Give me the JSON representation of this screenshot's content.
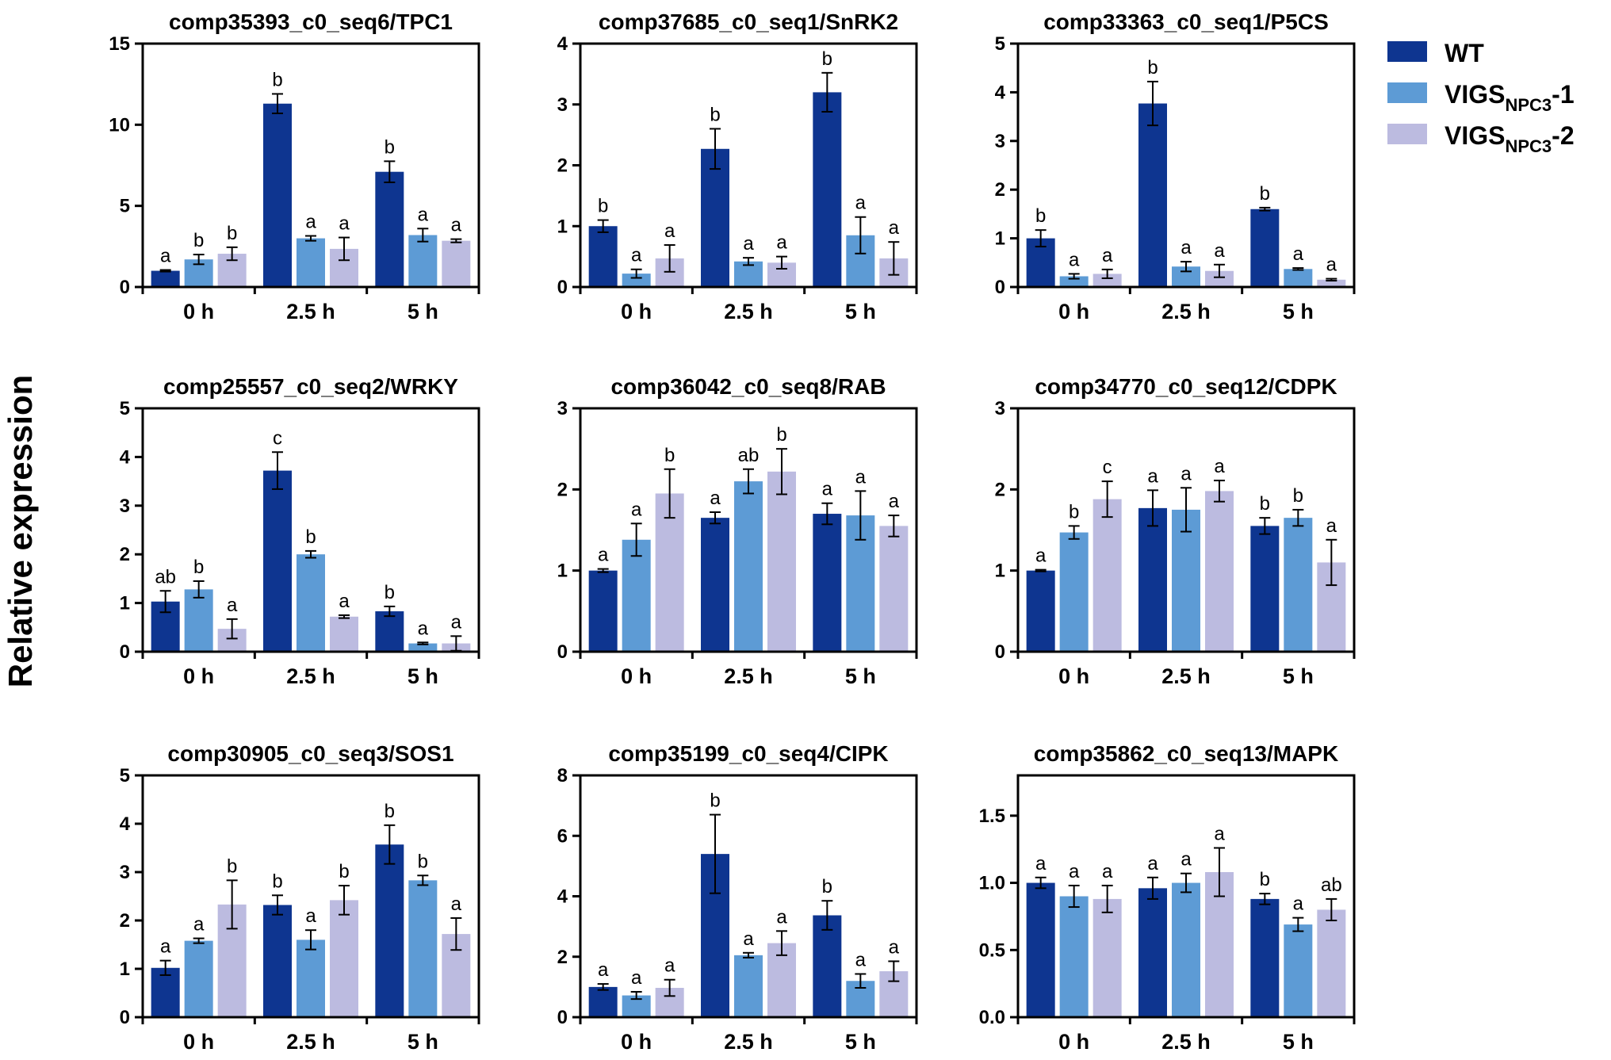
{
  "figure": {
    "ylabel": "Relative expression"
  },
  "legend": [
    {
      "name": "WT",
      "sub": "",
      "suffix": "",
      "color": "#0e3590"
    },
    {
      "name": "VIGS",
      "sub": "NPC3",
      "suffix": "-1",
      "color": "#5d9bd5"
    },
    {
      "name": "VIGS",
      "sub": "NPC3",
      "suffix": "-2",
      "color": "#bcbbe0"
    }
  ],
  "chart_data": [
    {
      "type": "bar",
      "title": "comp35393_c0_seq6/TPC1",
      "categories": [
        "0 h",
        "2.5 h",
        "5 h"
      ],
      "ylim": [
        0,
        15
      ],
      "yticks": [
        0,
        5,
        10,
        15
      ],
      "tick_labels": [
        "0",
        "5",
        "10",
        "15"
      ],
      "series": [
        {
          "name": "WT",
          "values": [
            1.0,
            11.3,
            7.1
          ],
          "errors": [
            0.05,
            0.6,
            0.65
          ],
          "letters": [
            "a",
            "b",
            "b"
          ]
        },
        {
          "name": "VIGS NPC3-1",
          "values": [
            1.7,
            3.0,
            3.2
          ],
          "errors": [
            0.3,
            0.15,
            0.4
          ],
          "letters": [
            "b",
            "a",
            "a"
          ]
        },
        {
          "name": "VIGS NPC3-2",
          "values": [
            2.05,
            2.35,
            2.85
          ],
          "errors": [
            0.4,
            0.7,
            0.1
          ],
          "letters": [
            "b",
            "a",
            "a"
          ]
        }
      ]
    },
    {
      "type": "bar",
      "title": "comp37685_c0_seq1/SnRK2",
      "categories": [
        "0 h",
        "2.5 h",
        "5 h"
      ],
      "ylim": [
        0,
        4
      ],
      "yticks": [
        0,
        1,
        2,
        3,
        4
      ],
      "tick_labels": [
        "0",
        "1",
        "2",
        "3",
        "4"
      ],
      "series": [
        {
          "name": "WT",
          "values": [
            1.0,
            2.27,
            3.2
          ],
          "errors": [
            0.1,
            0.33,
            0.32
          ],
          "letters": [
            "b",
            "b",
            "b"
          ]
        },
        {
          "name": "VIGS NPC3-1",
          "values": [
            0.22,
            0.42,
            0.85
          ],
          "errors": [
            0.07,
            0.06,
            0.3
          ],
          "letters": [
            "a",
            "a",
            "a"
          ]
        },
        {
          "name": "VIGS NPC3-2",
          "values": [
            0.47,
            0.4,
            0.47
          ],
          "errors": [
            0.22,
            0.1,
            0.27
          ],
          "letters": [
            "a",
            "a",
            "a"
          ]
        }
      ]
    },
    {
      "type": "bar",
      "title": "comp33363_c0_seq1/P5CS",
      "categories": [
        "0 h",
        "2.5 h",
        "5 h"
      ],
      "ylim": [
        0,
        5
      ],
      "yticks": [
        0,
        1,
        2,
        3,
        4,
        5
      ],
      "tick_labels": [
        "0",
        "1",
        "2",
        "3",
        "4",
        "5"
      ],
      "series": [
        {
          "name": "WT",
          "values": [
            1.0,
            3.77,
            1.6
          ],
          "errors": [
            0.17,
            0.45,
            0.03
          ],
          "letters": [
            "b",
            "b",
            "b"
          ]
        },
        {
          "name": "VIGS NPC3-1",
          "values": [
            0.22,
            0.42,
            0.37
          ],
          "errors": [
            0.05,
            0.1,
            0.02
          ],
          "letters": [
            "a",
            "a",
            "a"
          ]
        },
        {
          "name": "VIGS NPC3-2",
          "values": [
            0.27,
            0.33,
            0.15
          ],
          "errors": [
            0.09,
            0.13,
            0.02
          ],
          "letters": [
            "a",
            "a",
            "a"
          ]
        }
      ]
    },
    {
      "type": "bar",
      "title": "comp25557_c0_seq2/WRKY",
      "categories": [
        "0 h",
        "2.5 h",
        "5 h"
      ],
      "ylim": [
        0,
        5
      ],
      "yticks": [
        0,
        1,
        2,
        3,
        4,
        5
      ],
      "tick_labels": [
        "0",
        "1",
        "2",
        "3",
        "4",
        "5"
      ],
      "series": [
        {
          "name": "WT",
          "values": [
            1.03,
            3.72,
            0.83
          ],
          "errors": [
            0.22,
            0.38,
            0.1
          ],
          "letters": [
            "ab",
            "c",
            "b"
          ]
        },
        {
          "name": "VIGS NPC3-1",
          "values": [
            1.28,
            2.0,
            0.17
          ],
          "errors": [
            0.17,
            0.07,
            0.02
          ],
          "letters": [
            "b",
            "b",
            "a"
          ]
        },
        {
          "name": "VIGS NPC3-2",
          "values": [
            0.47,
            0.72,
            0.17
          ],
          "errors": [
            0.2,
            0.03,
            0.15
          ],
          "letters": [
            "a",
            "a",
            "a"
          ]
        }
      ]
    },
    {
      "type": "bar",
      "title": "comp36042_c0_seq8/RAB",
      "categories": [
        "0 h",
        "2.5 h",
        "5 h"
      ],
      "ylim": [
        0,
        3
      ],
      "yticks": [
        0,
        1,
        2,
        3
      ],
      "tick_labels": [
        "0",
        "1",
        "2",
        "3"
      ],
      "series": [
        {
          "name": "WT",
          "values": [
            1.0,
            1.65,
            1.7
          ],
          "errors": [
            0.02,
            0.07,
            0.13
          ],
          "letters": [
            "a",
            "a",
            "a"
          ]
        },
        {
          "name": "VIGS NPC3-1",
          "values": [
            1.38,
            2.1,
            1.68
          ],
          "errors": [
            0.2,
            0.15,
            0.3
          ],
          "letters": [
            "a",
            "ab",
            "a"
          ]
        },
        {
          "name": "VIGS NPC3-2",
          "values": [
            1.95,
            2.22,
            1.55
          ],
          "errors": [
            0.3,
            0.28,
            0.13
          ],
          "letters": [
            "b",
            "b",
            "a"
          ]
        }
      ]
    },
    {
      "type": "bar",
      "title": "comp34770_c0_seq12/CDPK",
      "categories": [
        "0 h",
        "2.5 h",
        "5 h"
      ],
      "ylim": [
        0,
        3
      ],
      "yticks": [
        0,
        1,
        2,
        3
      ],
      "tick_labels": [
        "0",
        "1",
        "2",
        "3"
      ],
      "series": [
        {
          "name": "WT",
          "values": [
            1.0,
            1.77,
            1.55
          ],
          "errors": [
            0.01,
            0.22,
            0.1
          ],
          "letters": [
            "a",
            "a",
            "b"
          ]
        },
        {
          "name": "VIGS NPC3-1",
          "values": [
            1.47,
            1.75,
            1.65
          ],
          "errors": [
            0.08,
            0.27,
            0.1
          ],
          "letters": [
            "b",
            "a",
            "b"
          ]
        },
        {
          "name": "VIGS NPC3-2",
          "values": [
            1.88,
            1.98,
            1.1
          ],
          "errors": [
            0.22,
            0.13,
            0.28
          ],
          "letters": [
            "c",
            "a",
            "a"
          ]
        }
      ]
    },
    {
      "type": "bar",
      "title": "comp30905_c0_seq3/SOS1",
      "categories": [
        "0 h",
        "2.5 h",
        "5 h"
      ],
      "ylim": [
        0,
        5
      ],
      "yticks": [
        0,
        1,
        2,
        3,
        4,
        5
      ],
      "tick_labels": [
        "0",
        "1",
        "2",
        "3",
        "4",
        "5"
      ],
      "series": [
        {
          "name": "WT",
          "values": [
            1.02,
            2.32,
            3.57
          ],
          "errors": [
            0.15,
            0.2,
            0.4
          ],
          "letters": [
            "a",
            "b",
            "b"
          ]
        },
        {
          "name": "VIGS NPC3-1",
          "values": [
            1.58,
            1.6,
            2.83
          ],
          "errors": [
            0.05,
            0.2,
            0.1
          ],
          "letters": [
            "a",
            "a",
            "b"
          ]
        },
        {
          "name": "VIGS NPC3-2",
          "values": [
            2.33,
            2.42,
            1.72
          ],
          "errors": [
            0.5,
            0.3,
            0.33
          ],
          "letters": [
            "b",
            "b",
            "a"
          ]
        }
      ]
    },
    {
      "type": "bar",
      "title": "comp35199_c0_seq4/CIPK",
      "categories": [
        "0 h",
        "2.5 h",
        "5 h"
      ],
      "ylim": [
        0,
        8
      ],
      "yticks": [
        0,
        2,
        4,
        6,
        8
      ],
      "tick_labels": [
        "0",
        "2",
        "4",
        "6",
        "8"
      ],
      "series": [
        {
          "name": "WT",
          "values": [
            1.0,
            5.4,
            3.37
          ],
          "errors": [
            0.1,
            1.3,
            0.48
          ],
          "letters": [
            "a",
            "b",
            "b"
          ]
        },
        {
          "name": "VIGS NPC3-1",
          "values": [
            0.72,
            2.05,
            1.2
          ],
          "errors": [
            0.12,
            0.08,
            0.23
          ],
          "letters": [
            "a",
            "a",
            "a"
          ]
        },
        {
          "name": "VIGS NPC3-2",
          "values": [
            0.97,
            2.45,
            1.52
          ],
          "errors": [
            0.27,
            0.4,
            0.33
          ],
          "letters": [
            "a",
            "a",
            "a"
          ]
        }
      ]
    },
    {
      "type": "bar",
      "title": "comp35862_c0_seq13/MAPK",
      "categories": [
        "0 h",
        "2.5 h",
        "5 h"
      ],
      "ylim": [
        0,
        1.8
      ],
      "yticks": [
        0,
        0.5,
        1.0,
        1.5
      ],
      "tick_labels": [
        "0.0",
        "0.5",
        "1.0",
        "1.5"
      ],
      "series": [
        {
          "name": "WT",
          "values": [
            1.0,
            0.96,
            0.88
          ],
          "errors": [
            0.04,
            0.08,
            0.04
          ],
          "letters": [
            "a",
            "a",
            "b"
          ]
        },
        {
          "name": "VIGS NPC3-1",
          "values": [
            0.9,
            1.0,
            0.69
          ],
          "errors": [
            0.08,
            0.07,
            0.05
          ],
          "letters": [
            "a",
            "a",
            "a"
          ]
        },
        {
          "name": "VIGS NPC3-2",
          "values": [
            0.88,
            1.08,
            0.8
          ],
          "errors": [
            0.1,
            0.18,
            0.08
          ],
          "letters": [
            "a",
            "a",
            "ab"
          ]
        }
      ]
    }
  ]
}
